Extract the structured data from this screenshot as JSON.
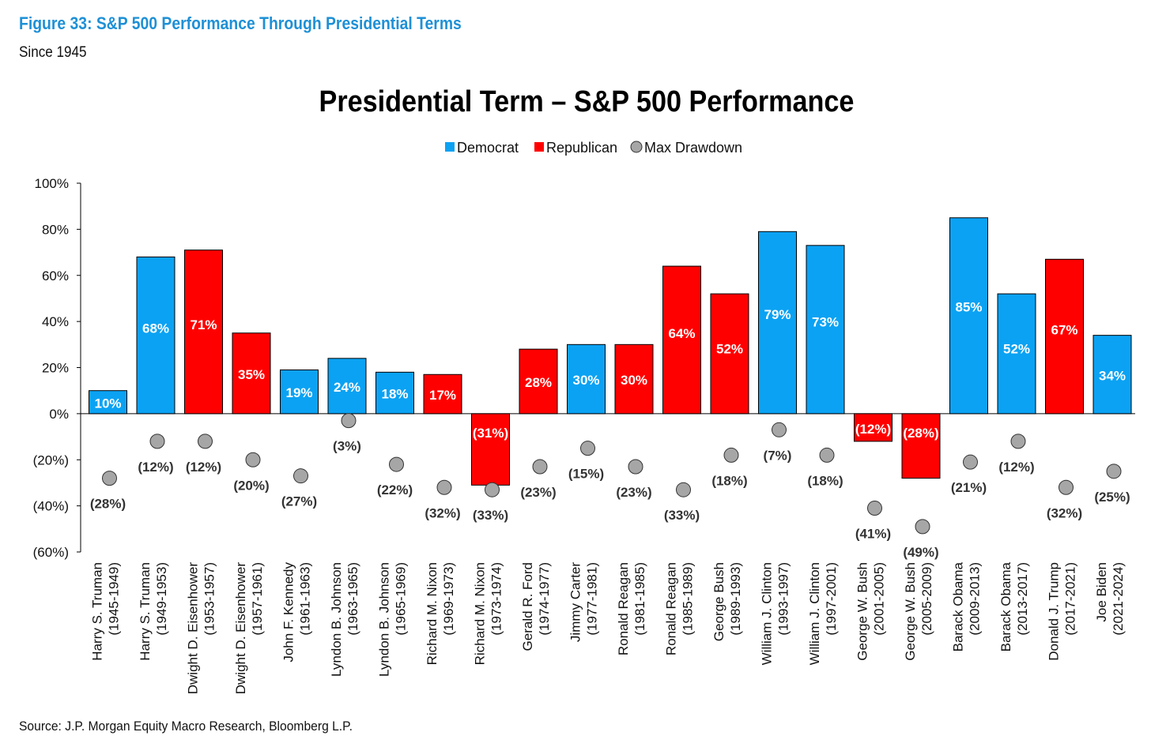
{
  "figure": {
    "title": "Figure 33: S&P 500 Performance Through Presidential Terms",
    "subtitle": "Since 1945",
    "source": "Source: J.P. Morgan Equity Macro Research, Bloomberg L.P."
  },
  "colors": {
    "democrat": "#0ba2f3",
    "republican": "#ff0000",
    "drawdown": "#a6a6a6"
  },
  "chart_data": {
    "type": "bar",
    "title": "Presidential Term – S&P 500 Performance",
    "legend": {
      "position": "top-center",
      "items": [
        "Democrat",
        "Republican",
        "Max Drawdown"
      ]
    },
    "ylim": [
      -60,
      100
    ],
    "yticks": [
      100,
      80,
      60,
      40,
      20,
      0,
      -20,
      -40,
      -60
    ],
    "ytick_labels": [
      "100%",
      "80%",
      "60%",
      "40%",
      "20%",
      "0%",
      "(20%)",
      "(40%)",
      "(60%)"
    ],
    "grid": false,
    "categories": [
      [
        "Harry S. Truman",
        "(1945-1949)"
      ],
      [
        "Harry S. Truman",
        "(1949-1953)"
      ],
      [
        "Dwight D. Eisenhower",
        "(1953-1957)"
      ],
      [
        "Dwight D. Eisenhower",
        "(1957-1961)"
      ],
      [
        "John F. Kennedy",
        "(1961-1963)"
      ],
      [
        "Lyndon B. Johnson",
        "(1963-1965)"
      ],
      [
        "Lyndon B. Johnson",
        "(1965-1969)"
      ],
      [
        "Richard M. Nixon",
        "(1969-1973)"
      ],
      [
        "Richard M. Nixon",
        "(1973-1974)"
      ],
      [
        "Gerald R. Ford",
        "(1974-1977)"
      ],
      [
        "Jimmy Carter",
        "(1977-1981)"
      ],
      [
        "Ronald Reagan",
        "(1981-1985)"
      ],
      [
        "Ronald Reagan",
        "(1985-1989)"
      ],
      [
        "George Bush",
        "(1989-1993)"
      ],
      [
        "William J. Clinton",
        "(1993-1997)"
      ],
      [
        "William J. Clinton",
        "(1997-2001)"
      ],
      [
        "George W. Bush",
        "(2001-2005)"
      ],
      [
        "George W. Bush",
        "(2005-2009)"
      ],
      [
        "Barack Obama",
        "(2009-2013)"
      ],
      [
        "Barack Obama",
        "(2013-2017)"
      ],
      [
        "Donald J. Trump",
        "(2017-2021)"
      ],
      [
        "Joe Biden",
        "(2021-2024)"
      ]
    ],
    "party": [
      "Democrat",
      "Democrat",
      "Republican",
      "Republican",
      "Democrat",
      "Democrat",
      "Democrat",
      "Republican",
      "Republican",
      "Republican",
      "Democrat",
      "Republican",
      "Republican",
      "Republican",
      "Democrat",
      "Democrat",
      "Republican",
      "Republican",
      "Democrat",
      "Democrat",
      "Republican",
      "Democrat"
    ],
    "series": [
      {
        "name": "Performance",
        "values": [
          10,
          68,
          71,
          35,
          19,
          24,
          18,
          17,
          -31,
          28,
          30,
          30,
          64,
          52,
          79,
          73,
          -12,
          -28,
          85,
          52,
          67,
          34
        ],
        "labels": [
          "10%",
          "68%",
          "71%",
          "35%",
          "19%",
          "24%",
          "18%",
          "17%",
          "(31%)",
          "28%",
          "30%",
          "30%",
          "64%",
          "52%",
          "79%",
          "73%",
          "(12%)",
          "(28%)",
          "85%",
          "52%",
          "67%",
          "34%"
        ]
      },
      {
        "name": "Max Drawdown",
        "values": [
          -28,
          -12,
          -12,
          -20,
          -27,
          -3,
          -22,
          -32,
          -33,
          -23,
          -15,
          -23,
          -33,
          -18,
          -7,
          -18,
          -41,
          -49,
          -21,
          -12,
          -32,
          -25
        ],
        "labels": [
          "(28%)",
          "(12%)",
          "(12%)",
          "(20%)",
          "(27%)",
          "(3%)",
          "(22%)",
          "(32%)",
          "(33%)",
          "(23%)",
          "(15%)",
          "(23%)",
          "(33%)",
          "(18%)",
          "(7%)",
          "(18%)",
          "(41%)",
          "(49%)",
          "(21%)",
          "(12%)",
          "(32%)",
          "(25%)"
        ]
      }
    ]
  }
}
